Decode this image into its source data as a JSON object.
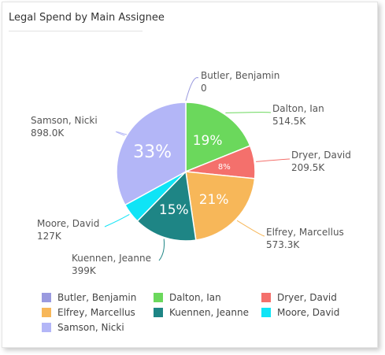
{
  "chart_data": {
    "type": "pie",
    "title": "Legal Spend by Main Assignee",
    "start_angle_deg": 0,
    "slices": [
      {
        "label": "Butler, Benjamin",
        "value": 0,
        "value_label": "0",
        "percent_label": "",
        "color": "#9a9adf"
      },
      {
        "label": "Dalton, Ian",
        "value": 514.5,
        "value_label": "514.5K",
        "percent_label": "19%",
        "color": "#6bd85c"
      },
      {
        "label": "Dryer, David",
        "value": 209.5,
        "value_label": "209.5K",
        "percent_label": "8%",
        "color": "#f4706c"
      },
      {
        "label": "Elfrey, Marcellus",
        "value": 573.3,
        "value_label": "573.3K",
        "percent_label": "21%",
        "color": "#f7b759"
      },
      {
        "label": "Kuennen, Jeanne",
        "value": 399,
        "value_label": "399K",
        "percent_label": "15%",
        "color": "#1e8585"
      },
      {
        "label": "Moore, David",
        "value": 127,
        "value_label": "127K",
        "percent_label": "",
        "color": "#0fe4f6"
      },
      {
        "label": "Samson, Nicki",
        "value": 898.0,
        "value_label": "898.0K",
        "percent_label": "33%",
        "color": "#b3b6f7"
      }
    ],
    "legend_position": "bottom"
  }
}
